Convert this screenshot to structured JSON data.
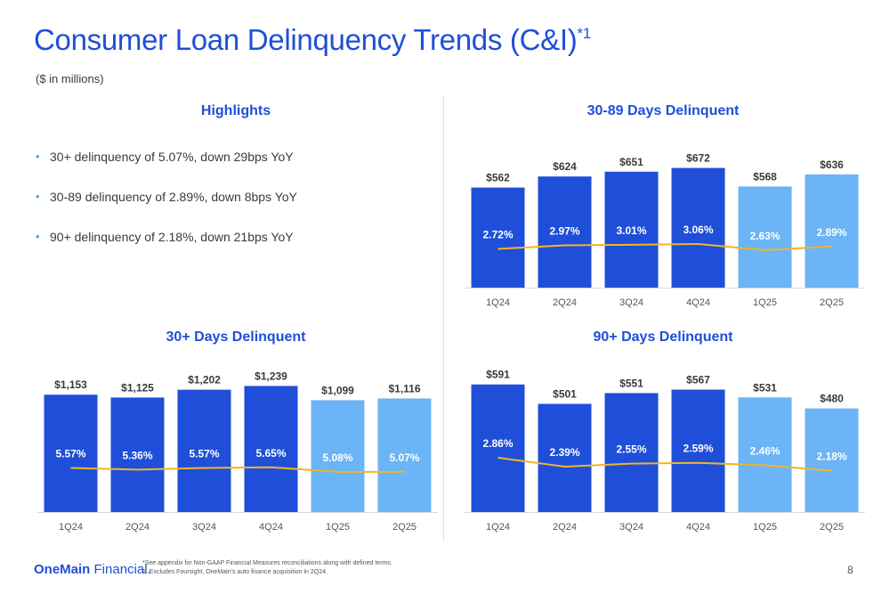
{
  "title": "Consumer Loan Delinquency Trends (C&I)",
  "title_superscript": "*1",
  "subtitle": "($ in millions)",
  "highlights": {
    "heading": "Highlights",
    "bullet_glyph": "•",
    "items": [
      "30+ delinquency of 5.07%, down 29bps YoY",
      "30-89 delinquency of 2.89%, down 8bps YoY",
      "90+ delinquency of 2.18%, down 21bps YoY"
    ]
  },
  "colors": {
    "dark_bar": "#1f4fd8",
    "light_bar": "#6bb4f5",
    "line": "#f0b429",
    "heading": "#1f4fd8"
  },
  "chart_data": [
    {
      "id": "c3089",
      "type": "bar",
      "title": "30-89 Days Delinquent",
      "categories": [
        "1Q24",
        "2Q24",
        "3Q24",
        "4Q24",
        "1Q25",
        "2Q25"
      ],
      "values": [
        562,
        624,
        651,
        672,
        568,
        636
      ],
      "value_labels": [
        "$562",
        "$624",
        "$651",
        "$672",
        "$568",
        "$636"
      ],
      "rates": [
        2.72,
        2.97,
        3.01,
        3.06,
        2.63,
        2.89
      ],
      "rate_labels": [
        "2.72%",
        "2.97%",
        "3.01%",
        "3.06%",
        "2.63%",
        "2.89%"
      ],
      "highlight_from_index": 4,
      "ylim": [
        0,
        800
      ],
      "rate_lim": [
        0,
        10
      ]
    },
    {
      "id": "c30",
      "type": "bar",
      "title": "30+ Days Delinquent",
      "categories": [
        "1Q24",
        "2Q24",
        "3Q24",
        "4Q24",
        "1Q25",
        "2Q25"
      ],
      "values": [
        1153,
        1125,
        1202,
        1239,
        1099,
        1116
      ],
      "value_labels": [
        "$1,153",
        "$1,125",
        "$1,202",
        "$1,239",
        "$1,099",
        "$1,116"
      ],
      "rates": [
        5.57,
        5.36,
        5.57,
        5.65,
        5.08,
        5.07
      ],
      "rate_labels": [
        "5.57%",
        "5.36%",
        "5.57%",
        "5.65%",
        "5.08%",
        "5.07%"
      ],
      "highlight_from_index": 4,
      "ylim": [
        0,
        1400
      ],
      "rate_lim": [
        0,
        18
      ]
    },
    {
      "id": "c90",
      "type": "bar",
      "title": "90+ Days Delinquent",
      "categories": [
        "1Q24",
        "2Q24",
        "3Q24",
        "4Q24",
        "1Q25",
        "2Q25"
      ],
      "values": [
        591,
        501,
        551,
        567,
        531,
        480
      ],
      "value_labels": [
        "$591",
        "$501",
        "$551",
        "$567",
        "$531",
        "$480"
      ],
      "rates": [
        2.86,
        2.39,
        2.55,
        2.59,
        2.46,
        2.18
      ],
      "rate_labels": [
        "2.86%",
        "2.39%",
        "2.55%",
        "2.59%",
        "2.46%",
        "2.18%"
      ],
      "highlight_from_index": 4,
      "ylim": [
        0,
        660
      ],
      "rate_lim": [
        0,
        7.5
      ]
    }
  ],
  "footer": {
    "logo_bold": "OneMain",
    "logo_regular": " Financial",
    "logo_mark": ".",
    "footnote_1": "*See appendix for Non-GAAP Financial Measures reconciliations along with defined terms.",
    "footnote_2": "1. Excludes Foursight, OneMain's auto finance acquisition in 2Q24.",
    "page_number": "8"
  }
}
